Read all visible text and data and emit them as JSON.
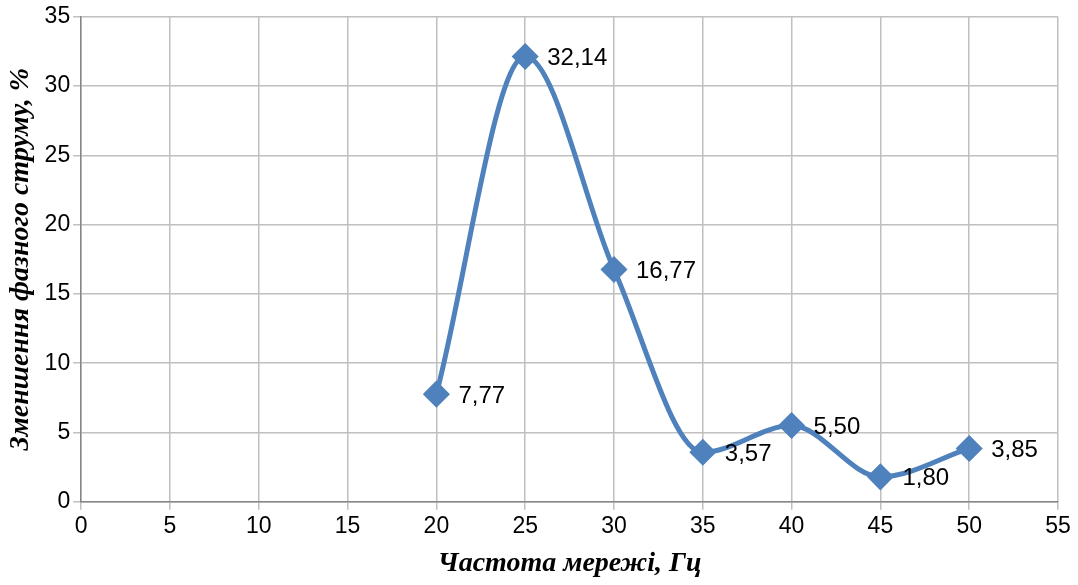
{
  "chart_data": {
    "type": "line",
    "xlabel": "Частота мережі, Гц",
    "ylabel": "Зменшення фазного струму, %",
    "x": [
      20,
      25,
      30,
      35,
      40,
      45,
      50
    ],
    "series": [
      {
        "color": "#4f81bd",
        "values": [
          7.77,
          32.14,
          16.77,
          3.57,
          5.5,
          1.8,
          3.85
        ],
        "value_labels": [
          "7,77",
          "32,14",
          "16,77",
          "3,57",
          "5,50",
          "1,80",
          "3,85"
        ]
      }
    ],
    "xlim": [
      0,
      55
    ],
    "xticks": [
      0,
      5,
      10,
      15,
      20,
      25,
      30,
      35,
      40,
      45,
      50,
      55
    ],
    "ylim": [
      0,
      35
    ],
    "yticks": [
      0,
      5,
      10,
      15,
      20,
      25,
      30,
      35
    ],
    "grid": true,
    "legend": false,
    "marker": "diamond",
    "line_style": "solid"
  }
}
